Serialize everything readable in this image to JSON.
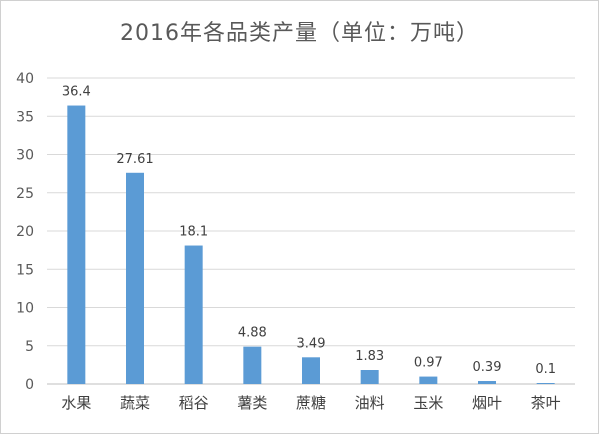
{
  "chart_data": {
    "type": "bar",
    "title": "2016年各品类产量（单位：万吨）",
    "categories": [
      "水果",
      "蔬菜",
      "稻谷",
      "薯类",
      "蔗糖",
      "油料",
      "玉米",
      "烟叶",
      "茶叶"
    ],
    "values": [
      36.4,
      27.61,
      18.1,
      4.88,
      3.49,
      1.83,
      0.97,
      0.39,
      0.1
    ],
    "data_labels": [
      "36.4",
      "27.61",
      "18.1",
      "4.88",
      "3.49",
      "1.83",
      "0.97",
      "0.39",
      "0.1"
    ],
    "ylim": [
      0,
      40
    ],
    "yticks": [
      "0",
      "5",
      "10",
      "15",
      "20",
      "25",
      "30",
      "35",
      "40"
    ],
    "grid": true,
    "legend": "none",
    "bar_color": "#5b9bd5",
    "grid_color": "#d9d9d9"
  }
}
